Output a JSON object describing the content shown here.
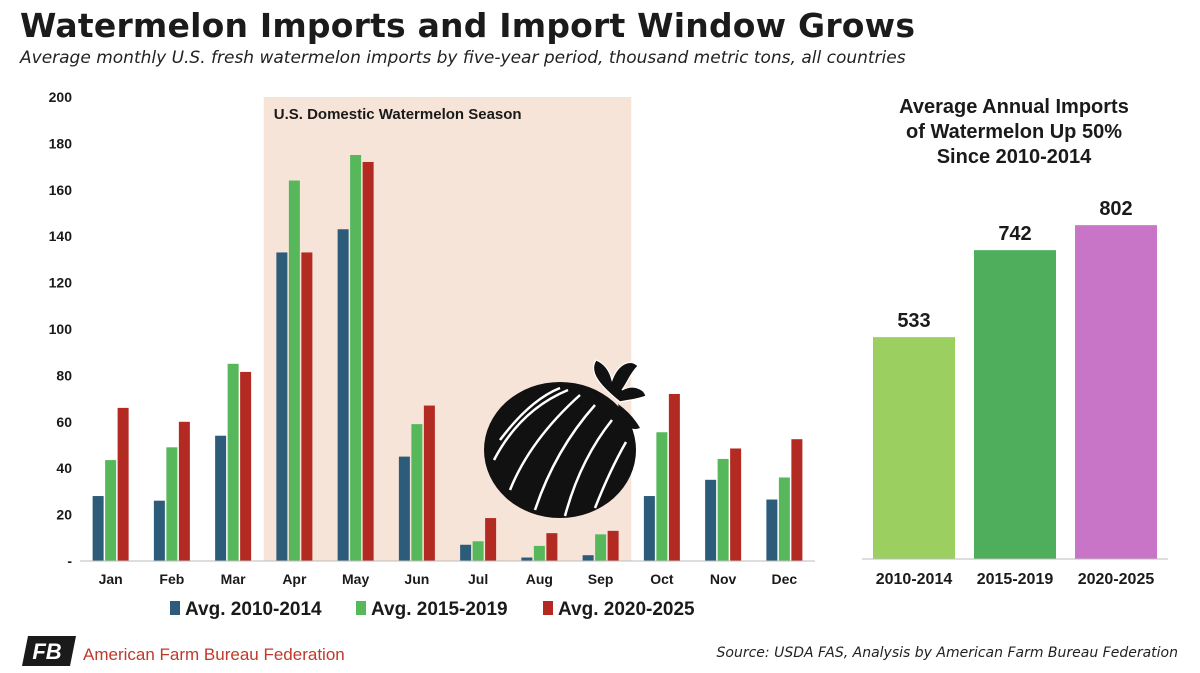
{
  "header": {
    "title": "Watermelon Imports and Import Window Grows",
    "subtitle": "Average monthly U.S. fresh watermelon imports by five-year period, thousand metric tons, all countries"
  },
  "footer": {
    "org": "American Farm Bureau Federation",
    "logo_text": "FB",
    "source": "Source: USDA FAS, Analysis by American Farm Bureau Federation"
  },
  "colors": {
    "s1": "#2d5b7a",
    "s2": "#57b85b",
    "s3": "#b22a22",
    "season": "#f7e4d9",
    "bar_2010": "#9bd061",
    "bar_2015": "#4fae5b",
    "bar_2020": "#c875c8",
    "brand_red": "#c0392b"
  },
  "icon": "watermelon-icon",
  "chart_data": [
    {
      "type": "bar",
      "categories": [
        "Jan",
        "Feb",
        "Mar",
        "Apr",
        "May",
        "Jun",
        "Jul",
        "Aug",
        "Sep",
        "Oct",
        "Nov",
        "Dec"
      ],
      "series": [
        {
          "name": "Avg. 2010-2014",
          "values": [
            28,
            26,
            54,
            133,
            143,
            45,
            7,
            1.5,
            2.5,
            28,
            35,
            26.5
          ]
        },
        {
          "name": "Avg. 2015-2019",
          "values": [
            43.5,
            49,
            85,
            164,
            175,
            59,
            8.5,
            6.5,
            11.5,
            55.5,
            44,
            36
          ]
        },
        {
          "name": "Avg. 2020-2025",
          "values": [
            66,
            60,
            81.5,
            133,
            172,
            67,
            18.5,
            12,
            13,
            72,
            48.5,
            52.5
          ]
        }
      ],
      "ylim": [
        0,
        200
      ],
      "yticks": [
        0,
        20,
        40,
        60,
        80,
        100,
        120,
        140,
        160,
        180,
        200
      ],
      "ytick_labels": [
        "-",
        "20",
        "40",
        "60",
        "80",
        "100",
        "120",
        "140",
        "160",
        "180",
        "200"
      ],
      "annotation": {
        "label": "U.S. Domestic Watermelon Season",
        "span": [
          "Apr",
          "Sep"
        ]
      },
      "legend": "bottom",
      "grid": false
    },
    {
      "type": "bar",
      "title": "Average Annual Imports of Watermelon Up 50% Since 2010-2014",
      "title_lines": [
        "Average Annual Imports",
        "of Watermelon Up 50%",
        "Since 2010-2014"
      ],
      "categories": [
        "2010-2014",
        "2015-2019",
        "2020-2025"
      ],
      "values": [
        533,
        742,
        802
      ],
      "data_labels": [
        "533",
        "742",
        "802"
      ],
      "ylim": [
        0,
        1100
      ],
      "grid": false
    }
  ]
}
